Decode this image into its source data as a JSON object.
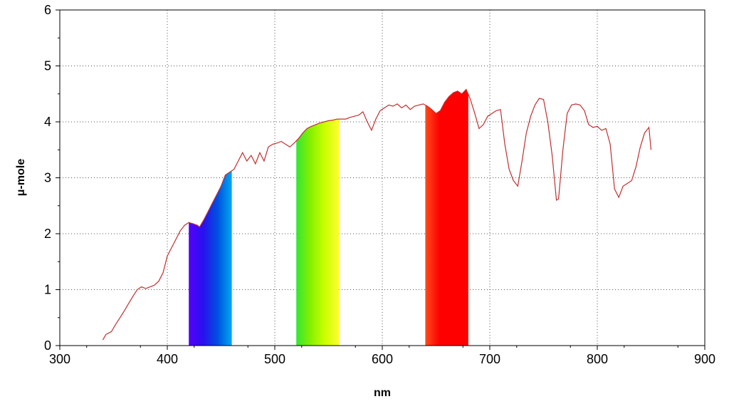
{
  "chart_data": {
    "type": "line",
    "title": "",
    "xlabel": "nm",
    "ylabel": "μ-mole",
    "xlim": [
      300,
      900
    ],
    "ylim": [
      0,
      6
    ],
    "grid": true,
    "x_ticks": [
      "300",
      "400",
      "500",
      "600",
      "700",
      "800",
      "900"
    ],
    "y_ticks": [
      "0",
      "1",
      "2",
      "3",
      "4",
      "5",
      "6"
    ],
    "line_color": "#c03030",
    "series": [
      {
        "x": [
          340,
          343,
          348,
          352,
          356,
          360,
          364,
          368,
          372,
          376,
          380,
          384,
          388,
          392,
          396,
          400,
          404,
          408,
          412,
          416,
          420,
          424,
          428,
          430,
          434,
          438,
          442,
          446,
          450,
          454,
          458,
          462,
          466,
          470,
          474,
          478,
          482,
          486,
          490,
          494,
          498,
          502,
          506,
          510,
          514,
          518,
          522,
          526,
          530,
          534,
          538,
          542,
          546,
          550,
          554,
          558,
          562,
          566,
          570,
          574,
          578,
          582,
          586,
          590,
          594,
          598,
          602,
          606,
          610,
          614,
          618,
          622,
          626,
          630,
          634,
          638,
          642,
          646,
          650,
          654,
          658,
          662,
          666,
          670,
          674,
          678,
          682,
          686,
          690,
          694,
          698,
          702,
          706,
          710,
          714,
          718,
          722,
          726,
          730,
          734,
          738,
          742,
          746,
          750,
          754,
          758,
          762,
          764,
          768,
          772,
          776,
          780,
          784,
          788,
          792,
          796,
          800,
          804,
          808,
          812,
          816,
          820,
          824,
          828,
          832,
          836,
          840,
          844,
          848,
          850
        ],
        "y": [
          0.1,
          0.2,
          0.25,
          0.38,
          0.5,
          0.62,
          0.75,
          0.88,
          1.0,
          1.05,
          1.02,
          1.05,
          1.08,
          1.15,
          1.3,
          1.6,
          1.75,
          1.9,
          2.05,
          2.15,
          2.2,
          2.18,
          2.15,
          2.12,
          2.25,
          2.4,
          2.55,
          2.7,
          2.85,
          3.05,
          3.1,
          3.15,
          3.3,
          3.45,
          3.3,
          3.4,
          3.25,
          3.45,
          3.3,
          3.55,
          3.6,
          3.62,
          3.65,
          3.6,
          3.55,
          3.62,
          3.7,
          3.8,
          3.88,
          3.92,
          3.95,
          3.98,
          4.0,
          4.02,
          4.03,
          4.05,
          4.05,
          4.05,
          4.08,
          4.1,
          4.12,
          4.18,
          4.0,
          3.85,
          4.05,
          4.2,
          4.25,
          4.3,
          4.28,
          4.32,
          4.25,
          4.3,
          4.22,
          4.28,
          4.3,
          4.32,
          4.28,
          4.22,
          4.15,
          4.2,
          4.35,
          4.45,
          4.52,
          4.55,
          4.5,
          4.58,
          4.4,
          4.15,
          3.88,
          3.95,
          4.1,
          4.15,
          4.2,
          4.22,
          3.6,
          3.15,
          2.95,
          2.85,
          3.3,
          3.8,
          4.1,
          4.3,
          4.42,
          4.4,
          4.0,
          3.4,
          2.6,
          2.62,
          3.5,
          4.15,
          4.3,
          4.32,
          4.3,
          4.2,
          3.95,
          3.9,
          3.92,
          3.85,
          3.88,
          3.6,
          2.8,
          2.65,
          2.85,
          2.9,
          2.95,
          3.2,
          3.55,
          3.8,
          3.9,
          3.5
        ]
      }
    ],
    "bands": [
      {
        "from": 420,
        "to": 460,
        "colors": [
          "#5500ff",
          "#2a10ee",
          "#0050e0",
          "#00a8f0"
        ]
      },
      {
        "from": 520,
        "to": 560,
        "colors": [
          "#33e633",
          "#88f000",
          "#ccff00",
          "#ffff33"
        ]
      },
      {
        "from": 640,
        "to": 680,
        "colors": [
          "#ff4a1a",
          "#ff0000",
          "#ff0000",
          "#ff0000"
        ]
      }
    ]
  }
}
